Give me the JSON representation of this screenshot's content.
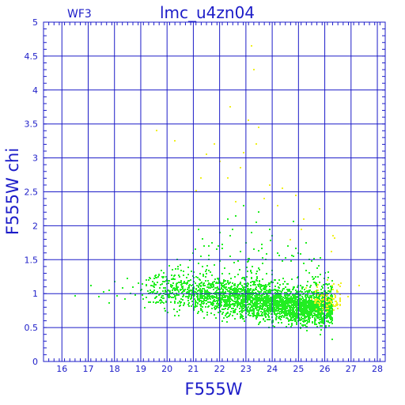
{
  "chart_data": {
    "type": "scatter",
    "title": "lmc_u4zn04",
    "corner_label": "WF3",
    "xlabel": "F555W",
    "ylabel": "F555W chi",
    "xlim": [
      15.3,
      28.3
    ],
    "ylim": [
      0,
      5
    ],
    "x_ticks": [
      16,
      17,
      18,
      19,
      20,
      21,
      22,
      23,
      24,
      25,
      26,
      27,
      28
    ],
    "y_ticks": [
      0,
      0.5,
      1,
      1.5,
      2,
      2.5,
      3,
      3.5,
      4,
      4.5,
      5
    ],
    "y_tick_labels": [
      "0",
      "0.5",
      "1",
      "1.5",
      "2",
      "2.5",
      "3",
      "3.5",
      "4",
      "4.5",
      "5"
    ],
    "grid": true,
    "colors": {
      "axes": "#1c1cc8",
      "green_points": "#22ee22",
      "yellow_points": "#f0f020"
    },
    "series": [
      {
        "color": "green",
        "points": [
          [
            16.5,
            0.97
          ],
          [
            17.1,
            1.12
          ],
          [
            17.4,
            0.95
          ],
          [
            17.6,
            1.02
          ],
          [
            17.8,
            1.05
          ],
          [
            17.8,
            0.86
          ],
          [
            18.0,
            1.18
          ],
          [
            18.1,
            0.97
          ],
          [
            18.3,
            1.08
          ],
          [
            18.4,
            0.92
          ],
          [
            18.5,
            1.22
          ],
          [
            18.6,
            1.0
          ],
          [
            18.7,
            1.1
          ],
          [
            18.8,
            0.98
          ],
          [
            18.9,
            1.15
          ],
          [
            19.0,
            1.05
          ],
          [
            19.1,
            0.92
          ],
          [
            19.2,
            1.2
          ],
          [
            19.3,
            1.0
          ],
          [
            19.4,
            1.12
          ],
          [
            19.6,
            0.95
          ],
          [
            19.8,
            1.25
          ],
          [
            20.0,
            1.02
          ],
          [
            20.2,
            1.35
          ],
          [
            20.4,
            1.15
          ],
          [
            20.6,
            0.95
          ],
          [
            20.8,
            1.28
          ],
          [
            20.5,
            1.42
          ],
          [
            20.9,
            1.2
          ],
          [
            21.0,
            1.6
          ],
          [
            21.1,
            1.25
          ],
          [
            21.2,
            1.95
          ],
          [
            21.2,
            1.45
          ],
          [
            21.3,
            1.55
          ],
          [
            21.5,
            1.35
          ],
          [
            21.6,
            1.5
          ],
          [
            21.8,
            1.42
          ],
          [
            21.9,
            1.65
          ],
          [
            21.7,
            1.75
          ],
          [
            22.0,
            1.48
          ],
          [
            22.1,
            1.72
          ],
          [
            22.2,
            1.38
          ],
          [
            22.4,
            1.55
          ],
          [
            22.5,
            1.95
          ],
          [
            22.4,
            1.85
          ],
          [
            22.7,
            1.48
          ],
          [
            22.8,
            1.62
          ],
          [
            22.9,
            2.3
          ],
          [
            23.0,
            1.75
          ],
          [
            23.1,
            1.52
          ],
          [
            23.2,
            1.9
          ],
          [
            23.3,
            1.65
          ],
          [
            23.4,
            2.05
          ],
          [
            23.6,
            1.72
          ],
          [
            23.8,
            1.58
          ],
          [
            24.0,
            1.85
          ],
          [
            24.2,
            1.6
          ],
          [
            24.4,
            1.48
          ],
          [
            24.6,
            1.7
          ],
          [
            24.8,
            1.55
          ],
          [
            25.0,
            1.6
          ],
          [
            25.2,
            1.45
          ],
          [
            25.4,
            1.5
          ],
          [
            25.7,
            1.38
          ],
          [
            26.0,
            1.3
          ],
          [
            22.3,
            2.1
          ],
          [
            22.6,
            2.15
          ],
          [
            23.5,
            2.2
          ],
          [
            22.0,
            1.9
          ],
          [
            21.4,
            1.7
          ],
          [
            23.9,
            1.95
          ]
        ]
      },
      {
        "color": "yellow",
        "points": [
          [
            23.2,
            4.65
          ],
          [
            23.3,
            4.3
          ],
          [
            22.4,
            3.75
          ],
          [
            23.1,
            3.55
          ],
          [
            23.5,
            3.45
          ],
          [
            23.4,
            3.2
          ],
          [
            21.8,
            3.2
          ],
          [
            22.9,
            3.08
          ],
          [
            21.5,
            3.05
          ],
          [
            22.0,
            2.95
          ],
          [
            22.8,
            2.85
          ],
          [
            22.3,
            2.7
          ],
          [
            23.9,
            2.6
          ],
          [
            24.4,
            2.55
          ],
          [
            21.1,
            2.52
          ],
          [
            23.7,
            2.4
          ],
          [
            24.2,
            2.3
          ],
          [
            22.6,
            2.35
          ],
          [
            25.2,
            2.1
          ],
          [
            25.0,
            2.0
          ],
          [
            25.8,
            2.25
          ],
          [
            26.3,
            1.85
          ],
          [
            25.1,
            1.95
          ],
          [
            24.7,
            1.8
          ],
          [
            27.3,
            1.12
          ],
          [
            26.9,
            0.95
          ],
          [
            26.6,
            1.15
          ],
          [
            26.2,
            1.05
          ],
          [
            25.9,
            0.98
          ],
          [
            25.7,
            1.1
          ],
          [
            25.5,
            0.92
          ],
          [
            26.4,
            0.88
          ],
          [
            25.3,
            1.08
          ],
          [
            26.1,
            1.2
          ],
          [
            25.8,
            0.85
          ],
          [
            26.0,
            0.95
          ],
          [
            19.6,
            3.4
          ],
          [
            20.3,
            3.25
          ],
          [
            21.3,
            2.7
          ],
          [
            24.9,
            2.45
          ]
        ]
      }
    ],
    "dense_regions": [
      {
        "color": "green",
        "x_range": [
          19.0,
          26.3
        ],
        "y_center_at_x": [
          [
            19,
            1.05
          ],
          [
            21,
            1.0
          ],
          [
            23,
            0.92
          ],
          [
            24,
            0.85
          ],
          [
            25,
            0.8
          ],
          [
            26,
            0.8
          ]
        ],
        "spread": 0.13,
        "count": 3600
      },
      {
        "color": "yellow",
        "x_range": [
          25.6,
          26.6
        ],
        "y_center_at_x": [
          [
            25.6,
            0.9
          ],
          [
            26.6,
            0.9
          ]
        ],
        "spread": 0.09,
        "count": 90
      }
    ]
  }
}
